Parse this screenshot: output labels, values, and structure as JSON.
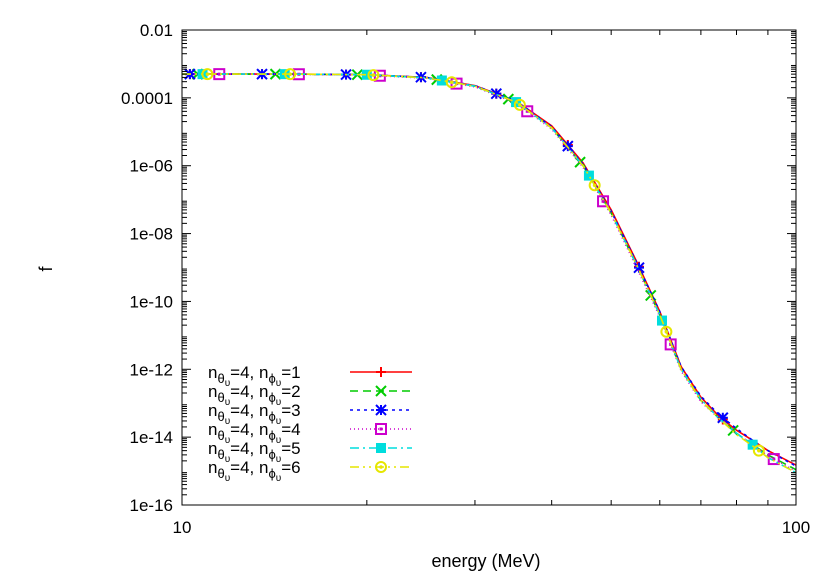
{
  "chart_data": {
    "type": "line",
    "title": "",
    "xlabel": "energy (MeV)",
    "ylabel": "f",
    "xscale": "log",
    "yscale": "log",
    "xlim": [
      10,
      100
    ],
    "ylim": [
      1e-16,
      0.01
    ],
    "grid": false,
    "legend_position": "bottom-left",
    "x_ticks": [
      {
        "value": 10,
        "label": "10"
      },
      {
        "value": 100,
        "label": "100"
      }
    ],
    "y_ticks": [
      {
        "value": 0.01,
        "label": "0.01"
      },
      {
        "value": 0.0001,
        "label": "0.0001"
      },
      {
        "value": 1e-06,
        "label": "1e-06"
      },
      {
        "value": 1e-08,
        "label": "1e-08"
      },
      {
        "value": 1e-10,
        "label": "1e-10"
      },
      {
        "value": 1e-12,
        "label": "1e-12"
      },
      {
        "value": 1e-14,
        "label": "1e-14"
      },
      {
        "value": 1e-16,
        "label": "1e-16"
      }
    ],
    "series": [
      {
        "legend": {
          "a": "4",
          "b": "1"
        },
        "color": "#ff0000",
        "dash": "",
        "marker": "plus",
        "points": [
          [
            10,
            0.0005
          ],
          [
            15,
            0.0005
          ],
          [
            20,
            0.00048
          ],
          [
            25,
            0.0004
          ],
          [
            30,
            0.00023
          ],
          [
            35,
            8e-05
          ],
          [
            40,
            1.5e-05
          ],
          [
            45,
            1.2e-06
          ],
          [
            50,
            5e-08
          ],
          [
            55,
            1.5e-09
          ],
          [
            60,
            5e-11
          ],
          [
            65,
            1.2e-12
          ],
          [
            70,
            1.5e-13
          ],
          [
            75,
            4e-14
          ],
          [
            80,
            1.6e-14
          ],
          [
            85,
            8e-15
          ],
          [
            90,
            4e-15
          ],
          [
            100,
            1.5e-15
          ]
        ]
      },
      {
        "legend": {
          "a": "4",
          "b": "2"
        },
        "color": "#00cc00",
        "dash": "8,5",
        "marker": "cross",
        "points": [
          [
            10,
            0.0005
          ],
          [
            15,
            0.0005
          ],
          [
            20,
            0.00048
          ],
          [
            25,
            0.00039
          ],
          [
            30,
            0.00022
          ],
          [
            35,
            7.5e-05
          ],
          [
            40,
            1.3e-05
          ],
          [
            45,
            1e-06
          ],
          [
            50,
            4e-08
          ],
          [
            55,
            1.2e-09
          ],
          [
            60,
            4e-11
          ],
          [
            65,
            1e-12
          ],
          [
            70,
            1.2e-13
          ],
          [
            75,
            3.5e-14
          ],
          [
            80,
            1.3e-14
          ],
          [
            85,
            6e-15
          ],
          [
            90,
            3e-15
          ],
          [
            100,
            1.1e-15
          ]
        ]
      },
      {
        "legend": {
          "a": "4",
          "b": "3"
        },
        "color": "#0000ff",
        "dash": "3,4",
        "marker": "star",
        "points": [
          [
            10,
            0.0005
          ],
          [
            15,
            0.0005
          ],
          [
            20,
            0.00048
          ],
          [
            25,
            0.0004
          ],
          [
            30,
            0.00023
          ],
          [
            35,
            8e-05
          ],
          [
            40,
            1.4e-05
          ],
          [
            45,
            1.1e-06
          ],
          [
            50,
            4.5e-08
          ],
          [
            55,
            1.4e-09
          ],
          [
            60,
            5e-11
          ],
          [
            65,
            1.2e-12
          ],
          [
            70,
            1.6e-13
          ],
          [
            75,
            4.5e-14
          ],
          [
            80,
            1.8e-14
          ],
          [
            85,
            8e-15
          ],
          [
            90,
            4e-15
          ],
          [
            100,
            1.4e-15
          ]
        ]
      },
      {
        "legend": {
          "a": "4",
          "b": "4"
        },
        "color": "#cc00cc",
        "dash": "1,3",
        "marker": "square",
        "points": [
          [
            10,
            0.0005
          ],
          [
            15,
            0.0005
          ],
          [
            20,
            0.00047
          ],
          [
            25,
            0.00038
          ],
          [
            30,
            0.00021
          ],
          [
            35,
            7e-05
          ],
          [
            40,
            1.2e-05
          ],
          [
            45,
            9e-07
          ],
          [
            50,
            3.5e-08
          ],
          [
            55,
            1e-09
          ],
          [
            60,
            3.5e-11
          ],
          [
            65,
            9e-13
          ],
          [
            70,
            1.1e-13
          ],
          [
            75,
            3.5e-14
          ],
          [
            80,
            1.3e-14
          ],
          [
            85,
            6e-15
          ],
          [
            90,
            2.8e-15
          ],
          [
            100,
            1e-15
          ]
        ]
      },
      {
        "legend": {
          "a": "4",
          "b": "5"
        },
        "color": "#00dddd",
        "dash": "9,4,2,4",
        "marker": "filled-square",
        "points": [
          [
            10,
            0.0005
          ],
          [
            15,
            0.0005
          ],
          [
            20,
            0.00048
          ],
          [
            25,
            0.00039
          ],
          [
            30,
            0.00022
          ],
          [
            35,
            7.5e-05
          ],
          [
            40,
            1.3e-05
          ],
          [
            45,
            1e-06
          ],
          [
            50,
            4e-08
          ],
          [
            55,
            1.2e-09
          ],
          [
            60,
            4e-11
          ],
          [
            65,
            1e-12
          ],
          [
            70,
            1.3e-13
          ],
          [
            75,
            3.5e-14
          ],
          [
            80,
            1.3e-14
          ],
          [
            85,
            6e-15
          ],
          [
            90,
            2.5e-15
          ],
          [
            100,
            9e-16
          ]
        ]
      },
      {
        "legend": {
          "a": "4",
          "b": "6"
        },
        "color": "#e6e600",
        "dash": "9,4,2,4,2,4",
        "marker": "circle",
        "points": [
          [
            10,
            0.0005
          ],
          [
            15,
            0.0005
          ],
          [
            20,
            0.00048
          ],
          [
            25,
            0.00039
          ],
          [
            30,
            0.00022
          ],
          [
            35,
            7.5e-05
          ],
          [
            40,
            1.3e-05
          ],
          [
            45,
            1e-06
          ],
          [
            50,
            4e-08
          ],
          [
            55,
            1.2e-09
          ],
          [
            60,
            4e-11
          ],
          [
            65,
            1e-12
          ],
          [
            70,
            1.2e-13
          ],
          [
            75,
            3.5e-14
          ],
          [
            80,
            1.2e-14
          ],
          [
            85,
            5.5e-15
          ],
          [
            90,
            2.5e-15
          ],
          [
            100,
            9e-16
          ]
        ]
      }
    ]
  }
}
